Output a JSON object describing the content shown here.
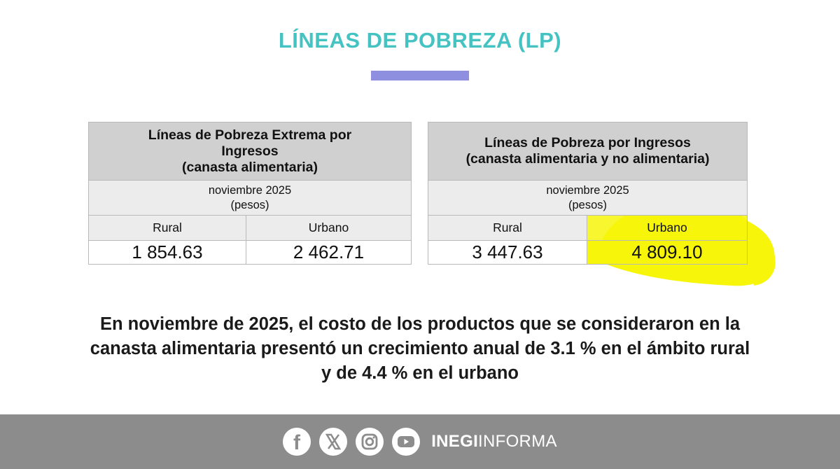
{
  "colors": {
    "title": "#45c3c3",
    "title_bar": "#8f8fe0",
    "highlight": "#f6f50a",
    "footer_bg": "#8c8c8c"
  },
  "title": "LÍNEAS DE POBREZA (LP)",
  "table_extreme": {
    "header": [
      "Líneas de Pobreza Extrema por",
      "Ingresos",
      "(canasta alimentaria)"
    ],
    "period": "noviembre 2025",
    "unit": "(pesos)",
    "columns": [
      "Rural",
      "Urbano"
    ],
    "values": [
      "1 854.63",
      "2 462.71"
    ]
  },
  "table_income": {
    "header": [
      "Líneas de Pobreza por Ingresos",
      "(canasta alimentaria y no alimentaria)"
    ],
    "period": "noviembre 2025",
    "unit": "(pesos)",
    "columns": [
      "Rural",
      "Urbano"
    ],
    "values": [
      "3 447.63",
      "4 809.10"
    ]
  },
  "summary": [
    "En noviembre de 2025, el costo de los productos que se consideraron en la",
    "canasta alimentaria presentó un crecimiento anual de 3.1 % en el ámbito rural",
    "y de 4.4 % en el urbano"
  ],
  "footer": {
    "icons": [
      "facebook-icon",
      "x-icon",
      "instagram-icon",
      "youtube-icon"
    ],
    "brand_bold": "INEGI",
    "brand_light": "INFORMA"
  }
}
